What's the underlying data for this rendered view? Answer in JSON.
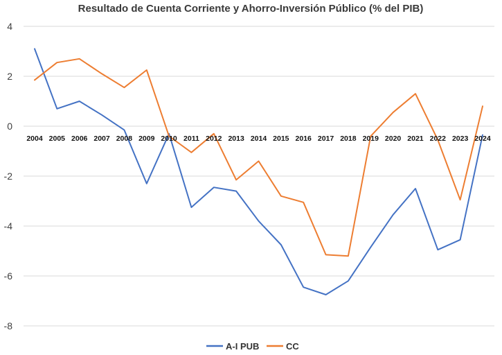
{
  "chart_data": {
    "type": "line",
    "title": "Resultado de Cuenta Corriente y Ahorro-Inversión Público (% del PIB)",
    "xlabel": "",
    "ylabel": "",
    "ylim": [
      -8,
      4
    ],
    "yticks": [
      4,
      2,
      0,
      -2,
      -4,
      -6,
      -8
    ],
    "grid": true,
    "legend": "bottom",
    "categories": [
      "2004",
      "2005",
      "2006",
      "2007",
      "2008",
      "2009",
      "2010",
      "2011",
      "2012",
      "2013",
      "2014",
      "2015",
      "2016",
      "2017",
      "2018",
      "2019",
      "2020",
      "2021",
      "2022",
      "2023",
      "2024"
    ],
    "series": [
      {
        "name": "A-I PUB",
        "color": "#4472C4",
        "values": [
          3.1,
          0.7,
          1.0,
          0.45,
          -0.15,
          -2.3,
          -0.3,
          -3.25,
          -2.45,
          -2.6,
          -3.8,
          -4.75,
          -6.45,
          -6.75,
          -6.2,
          -4.85,
          -3.55,
          -2.5,
          -4.95,
          -4.55,
          -0.35
        ]
      },
      {
        "name": "CC",
        "color": "#ED7D31",
        "values": [
          1.85,
          2.55,
          2.7,
          2.1,
          1.55,
          2.25,
          -0.4,
          -1.05,
          -0.3,
          -2.15,
          -1.4,
          -2.8,
          -3.05,
          -5.15,
          -5.2,
          -0.4,
          0.55,
          1.3,
          -0.55,
          -2.95,
          0.8
        ]
      }
    ]
  }
}
